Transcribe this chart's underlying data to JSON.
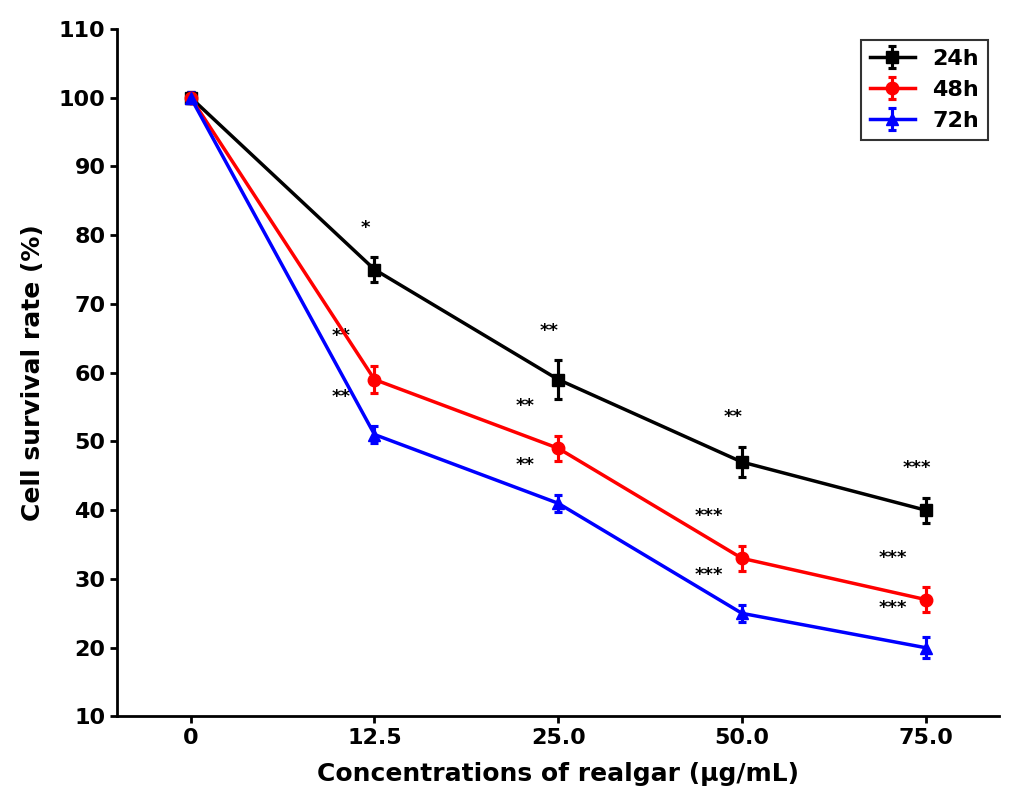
{
  "x": [
    0,
    12.5,
    25.0,
    50.0,
    75.0
  ],
  "x_labels": [
    "0",
    "12.5",
    "25.0",
    "50.0",
    "75.0"
  ],
  "series": [
    {
      "label": "24h",
      "color": "#000000",
      "marker": "s",
      "values": [
        100,
        75,
        59,
        47,
        40
      ],
      "errors": [
        0.8,
        1.8,
        2.8,
        2.2,
        1.8
      ]
    },
    {
      "label": "48h",
      "color": "#ff0000",
      "marker": "o",
      "values": [
        100,
        59,
        49,
        33,
        27
      ],
      "errors": [
        0.8,
        2.0,
        1.8,
        1.8,
        1.8
      ]
    },
    {
      "label": "72h",
      "color": "#0000ff",
      "marker": "^",
      "values": [
        100,
        51,
        41,
        25,
        20
      ],
      "errors": [
        0.8,
        1.2,
        1.2,
        1.2,
        1.5
      ]
    }
  ],
  "xlabel": "Concentrations of realgar (μg/mL)",
  "ylabel": "Cell survival rate (%)",
  "ylim": [
    10,
    110
  ],
  "yticks": [
    10,
    20,
    30,
    40,
    50,
    60,
    70,
    80,
    90,
    100,
    110
  ],
  "legend_loc": "upper right",
  "linewidth": 2.5,
  "markersize": 9,
  "capsize": 3,
  "background_color": "#ffffff",
  "annot_fontsize": 13
}
